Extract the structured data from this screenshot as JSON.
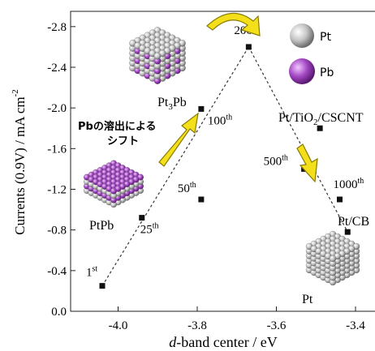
{
  "chart_data": {
    "type": "scatter",
    "xlabel_italic": "d",
    "xlabel_rest": "-band center / eV",
    "ylabel": "Currents (0.9V) / mA cm",
    "ylabel_sup": "-2",
    "xlim": [
      -4.12,
      -3.32
    ],
    "ylim": [
      0.0,
      -2.95
    ],
    "xticks": [
      -4.0,
      -3.8,
      -3.6,
      -3.4
    ],
    "xtick_labels": [
      "-4.0",
      "-3.8",
      "-3.6",
      "-3.4"
    ],
    "yticks": [
      0.0,
      -0.4,
      -0.8,
      -1.2,
      -1.6,
      -2.0,
      -2.4,
      -2.8
    ],
    "ytick_labels": [
      "0.0",
      "-0.4",
      "-0.8",
      "-1.2",
      "-1.6",
      "-2.0",
      "-2.4",
      "-2.8"
    ],
    "points": [
      {
        "x": -4.04,
        "y": -0.25,
        "label": "1",
        "sup": "st"
      },
      {
        "x": -3.94,
        "y": -0.92,
        "label": "25",
        "sup": "th"
      },
      {
        "x": -3.79,
        "y": -1.1,
        "label": "50",
        "sup": "th"
      },
      {
        "x": -3.79,
        "y": -1.99,
        "label": "100",
        "sup": "th"
      },
      {
        "x": -3.67,
        "y": -2.6,
        "label": "200",
        "sup": "th"
      },
      {
        "x": -3.53,
        "y": -1.4,
        "label": "500",
        "sup": "th"
      },
      {
        "x": -3.44,
        "y": -1.1,
        "label": "1000",
        "sup": "th"
      },
      {
        "x": -3.49,
        "y": -1.8,
        "label": "",
        "sup": ""
      },
      {
        "x": -3.42,
        "y": -0.78,
        "label": "",
        "sup": ""
      }
    ],
    "trend_lines": [
      {
        "from": [
          -4.04,
          -0.25
        ],
        "to": [
          -3.67,
          -2.6
        ]
      },
      {
        "from": [
          -3.67,
          -2.6
        ],
        "to": [
          -3.42,
          -0.78
        ]
      }
    ],
    "annotations": {
      "pt3pb_main": "Pt",
      "pt3pb_sub": "3",
      "pt3pb_end": "Pb",
      "ptpb": "PtPb",
      "pttio2": "Pt/TiO",
      "pttio2_sub": "2",
      "pttio2_end": "/CSCNT",
      "ptcb": "Pt/CB",
      "pt_cluster": "Pt",
      "jp_line1": "Pbの溶出による",
      "jp_line2": "シフト",
      "legend_pt": "Pt",
      "legend_pb": "Pb"
    },
    "colors": {
      "pt": "#b5b5b5",
      "pb": "#a347c3",
      "arrow": "#f3e01a",
      "arrow_edge": "#8a7a00"
    }
  }
}
